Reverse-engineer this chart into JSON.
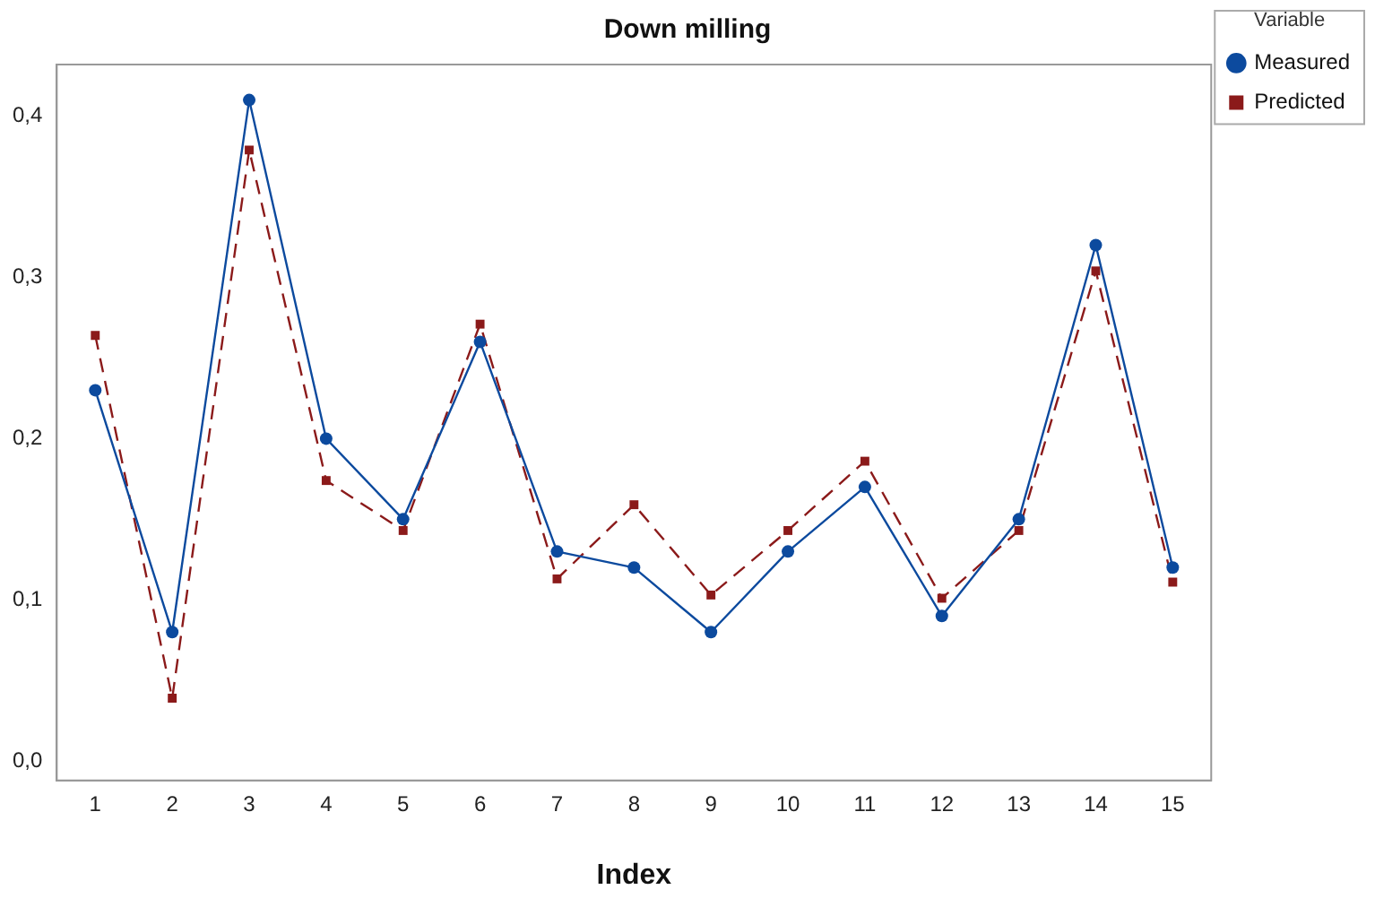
{
  "chart_data": {
    "type": "line",
    "title": "Down milling",
    "xlabel": "Index",
    "legend_title": "Variable",
    "categories": [
      "1",
      "2",
      "3",
      "4",
      "5",
      "6",
      "7",
      "8",
      "9",
      "10",
      "11",
      "12",
      "13",
      "14",
      "15"
    ],
    "series": [
      {
        "name": "Measured",
        "color": "#0c4a9e",
        "marker": "circle",
        "line_style": "solid",
        "values": [
          0.23,
          0.08,
          0.41,
          0.2,
          0.15,
          0.26,
          0.13,
          0.12,
          0.08,
          0.13,
          0.17,
          0.09,
          0.15,
          0.32,
          0.12
        ]
      },
      {
        "name": "Predicted",
        "color": "#8b1a1a",
        "marker": "square",
        "line_style": "dashed",
        "values": [
          0.264,
          0.039,
          0.379,
          0.174,
          0.143,
          0.271,
          0.113,
          0.159,
          0.103,
          0.143,
          0.186,
          0.101,
          0.143,
          0.304,
          0.111
        ]
      }
    ],
    "ylim": [
      -0.012,
      0.432
    ],
    "yticks": [
      {
        "value": 0,
        "label": "0,0"
      },
      {
        "value": 0.1,
        "label": "0,1"
      },
      {
        "value": 0.2,
        "label": "0,2"
      },
      {
        "value": 0.3,
        "label": "0,3"
      },
      {
        "value": 0.4,
        "label": "0,4"
      }
    ],
    "grid": false,
    "legend": "top right"
  }
}
